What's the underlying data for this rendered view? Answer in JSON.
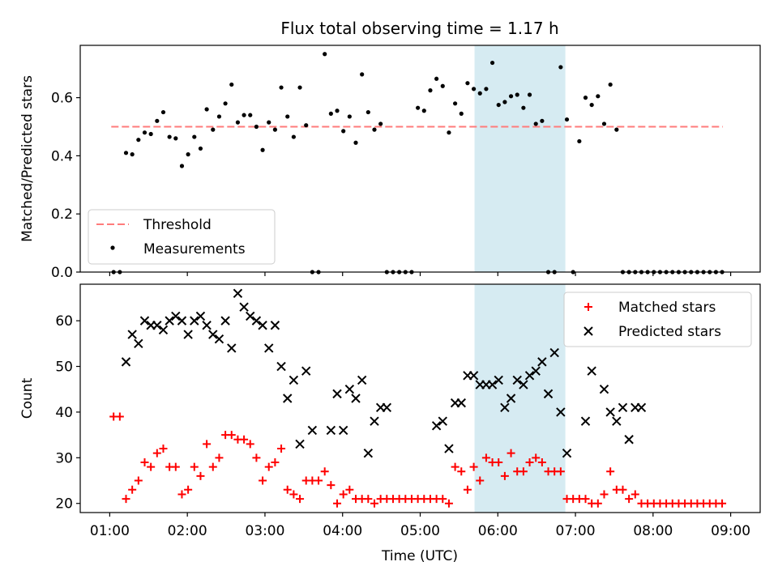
{
  "chart_data": {
    "title": "Flux total observing time = 1.17 h",
    "type": "scatter",
    "x_axis": {
      "label": "Time (UTC)",
      "tick_labels": [
        "01:00",
        "02:00",
        "03:00",
        "04:00",
        "05:00",
        "06:00",
        "07:00",
        "08:00",
        "09:00"
      ],
      "tick_values_h": [
        1,
        2,
        3,
        4,
        5,
        6,
        7,
        8,
        9
      ],
      "range_h": [
        0.62,
        9.38
      ]
    },
    "highlight_span_h": [
      5.7,
      6.87
    ],
    "panels": [
      {
        "ylabel": "Matched/Predicted stars",
        "ylim": [
          0,
          0.78
        ],
        "yticks": [
          0.0,
          0.2,
          0.4,
          0.6
        ],
        "ytick_labels": [
          "0.0",
          "0.2",
          "0.4",
          "0.6"
        ],
        "threshold": {
          "name": "Threshold",
          "value": 0.5,
          "x_range_h": [
            1.02,
            8.9
          ],
          "color": "#ff7b7b"
        },
        "legend": {
          "placement": "lower-left",
          "entries": [
            "Threshold",
            "Measurements"
          ]
        },
        "series": [
          {
            "name": "Measurements",
            "color": "#000000",
            "x": [
              1.05,
              1.13,
              1.21,
              1.29,
              1.37,
              1.45,
              1.53,
              1.61,
              1.69,
              1.77,
              1.85,
              1.93,
              2.01,
              2.09,
              2.17,
              2.25,
              2.33,
              2.41,
              2.49,
              2.57,
              2.65,
              2.73,
              2.81,
              2.89,
              2.97,
              3.05,
              3.13,
              3.21,
              3.29,
              3.37,
              3.45,
              3.53,
              3.61,
              3.69,
              3.77,
              3.85,
              3.93,
              4.01,
              4.09,
              4.17,
              4.25,
              4.33,
              4.41,
              4.49,
              4.57,
              4.65,
              4.73,
              4.81,
              4.89,
              4.97,
              5.05,
              5.13,
              5.21,
              5.29,
              5.37,
              5.45,
              5.53,
              5.61,
              5.69,
              5.77,
              5.85,
              5.93,
              6.01,
              6.09,
              6.17,
              6.25,
              6.33,
              6.41,
              6.49,
              6.57,
              6.65,
              6.73,
              6.81,
              6.89,
              6.97,
              7.05,
              7.13,
              7.21,
              7.29,
              7.37,
              7.45,
              7.53,
              7.61,
              7.69,
              7.77,
              7.85,
              7.93,
              8.01,
              8.09,
              8.17,
              8.25,
              8.33,
              8.41,
              8.49,
              8.57,
              8.65,
              8.73,
              8.81,
              8.89
            ],
            "y": [
              0,
              0,
              0.41,
              0.405,
              0.455,
              0.48,
              0.475,
              0.52,
              0.55,
              0.465,
              0.46,
              0.365,
              0.405,
              0.465,
              0.425,
              0.56,
              0.49,
              0.535,
              0.58,
              0.645,
              0.515,
              0.54,
              0.54,
              0.5,
              0.42,
              0.515,
              0.49,
              0.635,
              0.535,
              0.465,
              0.635,
              0.505,
              0,
              0,
              0.75,
              0.545,
              0.555,
              0.485,
              0.535,
              0.445,
              0.68,
              0.55,
              0.49,
              0.51,
              0,
              0,
              0,
              0,
              0,
              0.565,
              0.555,
              0.625,
              0.665,
              0.64,
              0.48,
              0.58,
              0.545,
              0.65,
              0.63,
              0.615,
              0.63,
              0.72,
              0.575,
              0.585,
              0.605,
              0.61,
              0.565,
              0.61,
              0.51,
              0.52,
              0,
              0,
              0.705,
              0.525,
              0,
              0.45,
              0.6,
              0.575,
              0.605,
              0.51,
              0.645,
              0.49,
              0,
              0,
              0,
              0,
              0,
              0,
              0,
              0,
              0,
              0,
              0,
              0,
              0,
              0,
              0,
              0,
              0
            ]
          }
        ]
      },
      {
        "ylabel": "Count",
        "ylim": [
          18,
          68
        ],
        "yticks": [
          20,
          30,
          40,
          50,
          60
        ],
        "ytick_labels": [
          "20",
          "30",
          "40",
          "50",
          "60"
        ],
        "legend": {
          "placement": "upper-right",
          "entries": [
            "Matched stars",
            "Predicted stars"
          ]
        },
        "series": [
          {
            "name": "Matched stars",
            "color": "#ff0000",
            "marker": "+",
            "x": [
              1.05,
              1.13,
              1.21,
              1.29,
              1.37,
              1.45,
              1.53,
              1.61,
              1.69,
              1.77,
              1.85,
              1.93,
              2.01,
              2.09,
              2.17,
              2.25,
              2.33,
              2.41,
              2.49,
              2.57,
              2.65,
              2.73,
              2.81,
              2.89,
              2.97,
              3.05,
              3.13,
              3.21,
              3.29,
              3.37,
              3.45,
              3.53,
              3.61,
              3.69,
              3.77,
              3.85,
              3.93,
              4.01,
              4.09,
              4.17,
              4.25,
              4.33,
              4.41,
              4.49,
              4.57,
              4.65,
              4.73,
              4.81,
              4.89,
              4.97,
              5.05,
              5.13,
              5.21,
              5.29,
              5.37,
              5.45,
              5.53,
              5.61,
              5.69,
              5.77,
              5.85,
              5.93,
              6.01,
              6.09,
              6.17,
              6.25,
              6.33,
              6.41,
              6.49,
              6.57,
              6.65,
              6.73,
              6.81,
              6.89,
              6.97,
              7.05,
              7.13,
              7.21,
              7.29,
              7.37,
              7.45,
              7.53,
              7.61,
              7.69,
              7.77,
              7.85,
              7.93,
              8.01,
              8.09,
              8.17,
              8.25,
              8.33,
              8.41,
              8.49,
              8.57,
              8.65,
              8.73,
              8.81,
              8.89
            ],
            "y": [
              39,
              39,
              21,
              23,
              25,
              29,
              28,
              31,
              32,
              28,
              28,
              22,
              23,
              28,
              26,
              33,
              28,
              30,
              35,
              35,
              34,
              34,
              33,
              30,
              25,
              28,
              29,
              32,
              23,
              22,
              21,
              25,
              25,
              25,
              27,
              24,
              20,
              22,
              23,
              21,
              21,
              21,
              20,
              21,
              21,
              21,
              21,
              21,
              21,
              21,
              21,
              21,
              21,
              21,
              20,
              28,
              27,
              23,
              28,
              25,
              30,
              29,
              29,
              26,
              31,
              27,
              27,
              29,
              30,
              29,
              27,
              27,
              27,
              21,
              21,
              21,
              21,
              20,
              20,
              22,
              27,
              23,
              23,
              21,
              22,
              20,
              20,
              20,
              20,
              20,
              20,
              20,
              20,
              20,
              20,
              20,
              20,
              20,
              20
            ]
          },
          {
            "name": "Predicted stars",
            "color": "#000000",
            "marker": "x",
            "x": [
              1.21,
              1.29,
              1.37,
              1.45,
              1.53,
              1.61,
              1.69,
              1.77,
              1.85,
              1.93,
              2.01,
              2.09,
              2.17,
              2.25,
              2.33,
              2.41,
              2.49,
              2.57,
              2.65,
              2.73,
              2.81,
              2.89,
              2.97,
              3.05,
              3.13,
              3.21,
              3.29,
              3.37,
              3.45,
              3.53,
              3.61,
              3.85,
              3.93,
              4.01,
              4.09,
              4.17,
              4.25,
              4.33,
              4.41,
              4.49,
              4.57,
              5.21,
              5.29,
              5.37,
              5.45,
              5.53,
              5.61,
              5.69,
              5.77,
              5.85,
              5.93,
              6.01,
              6.09,
              6.17,
              6.25,
              6.33,
              6.41,
              6.49,
              6.57,
              6.65,
              6.73,
              6.81,
              6.89,
              7.13,
              7.21,
              7.37,
              7.45,
              7.53,
              7.61,
              7.69,
              7.77,
              7.85
            ],
            "y": [
              51,
              57,
              55,
              60,
              59,
              59,
              58,
              60,
              61,
              60,
              57,
              60,
              61,
              59,
              57,
              56,
              60,
              54,
              66,
              63,
              61,
              60,
              59,
              54,
              59,
              50,
              43,
              47,
              33,
              49,
              36,
              36,
              44,
              36,
              45,
              43,
              47,
              31,
              38,
              41,
              41,
              37,
              38,
              32,
              42,
              42,
              48,
              48,
              46,
              46,
              46,
              47,
              41,
              43,
              47,
              46,
              48,
              49,
              51,
              44,
              53,
              40,
              31,
              38,
              49,
              45,
              40,
              38,
              41,
              34,
              41,
              41
            ]
          }
        ]
      }
    ]
  }
}
